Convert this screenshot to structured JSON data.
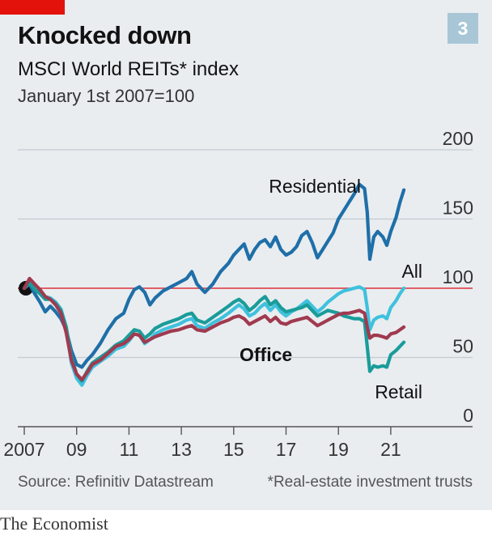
{
  "header": {
    "title": "Knocked down",
    "subtitle": "MSCI World REITs* index",
    "units": "January 1st 2007=100",
    "chart_number": "3"
  },
  "footer": {
    "source": "Source: Refinitiv Datastream",
    "footnote": "*Real-estate investment trusts",
    "brand": "The Economist"
  },
  "colors": {
    "residential": "#1f6fa8",
    "all": "#3fc1dd",
    "office": "#a03a4f",
    "retail": "#1a9c9a",
    "baseline": "#e0333c",
    "grid": "#c3ccd3",
    "panel": "#e9edf0"
  },
  "chart_data": {
    "type": "line",
    "title": "Knocked down",
    "subtitle": "MSCI World REITs* index",
    "ylabel": "January 1st 2007=100",
    "xlim": [
      2007,
      2021.9
    ],
    "ylim": [
      0,
      200
    ],
    "yticks": [
      0,
      50,
      100,
      150,
      200
    ],
    "xticks": [
      {
        "value": 2007,
        "label": "2007"
      },
      {
        "value": 2009,
        "label": "09"
      },
      {
        "value": 2011,
        "label": "11"
      },
      {
        "value": 2013,
        "label": "13"
      },
      {
        "value": 2015,
        "label": "15"
      },
      {
        "value": 2017,
        "label": "17"
      },
      {
        "value": 2019,
        "label": "19"
      },
      {
        "value": 2021,
        "label": "21"
      }
    ],
    "baseline": 100,
    "grid": true,
    "series": [
      {
        "name": "Residential",
        "key": "residential",
        "points": [
          [
            2007,
            100
          ],
          [
            2007.2,
            103
          ],
          [
            2007.4,
            96
          ],
          [
            2007.6,
            90
          ],
          [
            2007.8,
            83
          ],
          [
            2008,
            87
          ],
          [
            2008.2,
            83
          ],
          [
            2008.4,
            78
          ],
          [
            2008.6,
            70
          ],
          [
            2008.8,
            55
          ],
          [
            2009.0,
            45
          ],
          [
            2009.2,
            43
          ],
          [
            2009.4,
            48
          ],
          [
            2009.6,
            52
          ],
          [
            2009.9,
            60
          ],
          [
            2010.2,
            70
          ],
          [
            2010.5,
            78
          ],
          [
            2010.8,
            82
          ],
          [
            2011.0,
            92
          ],
          [
            2011.2,
            99
          ],
          [
            2011.4,
            101
          ],
          [
            2011.6,
            97
          ],
          [
            2011.8,
            88
          ],
          [
            2012.0,
            93
          ],
          [
            2012.3,
            98
          ],
          [
            2012.6,
            101
          ],
          [
            2012.9,
            104
          ],
          [
            2013.2,
            107
          ],
          [
            2013.4,
            112
          ],
          [
            2013.6,
            103
          ],
          [
            2013.9,
            97
          ],
          [
            2014.2,
            103
          ],
          [
            2014.5,
            112
          ],
          [
            2014.8,
            118
          ],
          [
            2015.0,
            124
          ],
          [
            2015.2,
            128
          ],
          [
            2015.4,
            132
          ],
          [
            2015.6,
            121
          ],
          [
            2015.8,
            128
          ],
          [
            2016.0,
            133
          ],
          [
            2016.2,
            135
          ],
          [
            2016.4,
            130
          ],
          [
            2016.6,
            137
          ],
          [
            2016.8,
            128
          ],
          [
            2017.0,
            124
          ],
          [
            2017.2,
            126
          ],
          [
            2017.4,
            130
          ],
          [
            2017.6,
            138
          ],
          [
            2017.8,
            141
          ],
          [
            2018.0,
            133
          ],
          [
            2018.2,
            122
          ],
          [
            2018.4,
            128
          ],
          [
            2018.6,
            134
          ],
          [
            2018.8,
            140
          ],
          [
            2019.0,
            150
          ],
          [
            2019.2,
            156
          ],
          [
            2019.4,
            162
          ],
          [
            2019.6,
            168
          ],
          [
            2019.8,
            175
          ],
          [
            2020.0,
            172
          ],
          [
            2020.1,
            155
          ],
          [
            2020.2,
            121
          ],
          [
            2020.35,
            137
          ],
          [
            2020.5,
            141
          ],
          [
            2020.7,
            137
          ],
          [
            2020.85,
            131
          ],
          [
            2021.0,
            141
          ],
          [
            2021.2,
            151
          ],
          [
            2021.35,
            162
          ],
          [
            2021.5,
            171
          ]
        ]
      },
      {
        "name": "All",
        "key": "all",
        "points": [
          [
            2007,
            100
          ],
          [
            2007.2,
            106
          ],
          [
            2007.4,
            101
          ],
          [
            2007.6,
            98
          ],
          [
            2007.8,
            94
          ],
          [
            2008,
            93
          ],
          [
            2008.2,
            90
          ],
          [
            2008.4,
            85
          ],
          [
            2008.6,
            72
          ],
          [
            2008.8,
            46
          ],
          [
            2009.0,
            35
          ],
          [
            2009.2,
            30
          ],
          [
            2009.4,
            37
          ],
          [
            2009.6,
            43
          ],
          [
            2009.9,
            47
          ],
          [
            2010.2,
            51
          ],
          [
            2010.5,
            56
          ],
          [
            2010.8,
            58
          ],
          [
            2011.0,
            62
          ],
          [
            2011.2,
            67
          ],
          [
            2011.4,
            66
          ],
          [
            2011.6,
            60
          ],
          [
            2011.8,
            63
          ],
          [
            2012.0,
            67
          ],
          [
            2012.3,
            70
          ],
          [
            2012.6,
            72
          ],
          [
            2012.9,
            74
          ],
          [
            2013.2,
            77
          ],
          [
            2013.4,
            78
          ],
          [
            2013.6,
            73
          ],
          [
            2013.9,
            71
          ],
          [
            2014.2,
            75
          ],
          [
            2014.5,
            78
          ],
          [
            2014.8,
            82
          ],
          [
            2015.0,
            85
          ],
          [
            2015.2,
            88
          ],
          [
            2015.4,
            85
          ],
          [
            2015.6,
            80
          ],
          [
            2015.8,
            82
          ],
          [
            2016.0,
            86
          ],
          [
            2016.2,
            89
          ],
          [
            2016.4,
            84
          ],
          [
            2016.6,
            88
          ],
          [
            2016.8,
            83
          ],
          [
            2017.0,
            80
          ],
          [
            2017.2,
            83
          ],
          [
            2017.4,
            85
          ],
          [
            2017.6,
            88
          ],
          [
            2017.8,
            91
          ],
          [
            2018.0,
            87
          ],
          [
            2018.2,
            83
          ],
          [
            2018.4,
            86
          ],
          [
            2018.6,
            90
          ],
          [
            2018.8,
            93
          ],
          [
            2019.0,
            96
          ],
          [
            2019.2,
            98
          ],
          [
            2019.4,
            99
          ],
          [
            2019.6,
            100
          ],
          [
            2019.8,
            101
          ],
          [
            2020.0,
            99
          ],
          [
            2020.1,
            86
          ],
          [
            2020.2,
            70
          ],
          [
            2020.35,
            77
          ],
          [
            2020.5,
            79
          ],
          [
            2020.7,
            80
          ],
          [
            2020.85,
            78
          ],
          [
            2021.0,
            86
          ],
          [
            2021.2,
            91
          ],
          [
            2021.35,
            96
          ],
          [
            2021.5,
            100
          ]
        ]
      },
      {
        "name": "Office",
        "key": "office",
        "points": [
          [
            2007,
            100
          ],
          [
            2007.2,
            107
          ],
          [
            2007.4,
            103
          ],
          [
            2007.6,
            99
          ],
          [
            2007.8,
            94
          ],
          [
            2008,
            92
          ],
          [
            2008.2,
            88
          ],
          [
            2008.4,
            82
          ],
          [
            2008.6,
            68
          ],
          [
            2008.8,
            48
          ],
          [
            2009.0,
            38
          ],
          [
            2009.2,
            34
          ],
          [
            2009.4,
            39
          ],
          [
            2009.6,
            45
          ],
          [
            2009.9,
            48
          ],
          [
            2010.2,
            53
          ],
          [
            2010.5,
            58
          ],
          [
            2010.8,
            60
          ],
          [
            2011.0,
            63
          ],
          [
            2011.2,
            67
          ],
          [
            2011.4,
            66
          ],
          [
            2011.6,
            61
          ],
          [
            2011.8,
            63
          ],
          [
            2012.0,
            65
          ],
          [
            2012.3,
            67
          ],
          [
            2012.6,
            69
          ],
          [
            2012.9,
            70
          ],
          [
            2013.2,
            72
          ],
          [
            2013.4,
            73
          ],
          [
            2013.6,
            70
          ],
          [
            2013.9,
            69
          ],
          [
            2014.2,
            72
          ],
          [
            2014.5,
            75
          ],
          [
            2014.8,
            77
          ],
          [
            2015.0,
            79
          ],
          [
            2015.2,
            80
          ],
          [
            2015.4,
            78
          ],
          [
            2015.6,
            74
          ],
          [
            2015.8,
            76
          ],
          [
            2016.0,
            78
          ],
          [
            2016.2,
            80
          ],
          [
            2016.4,
            76
          ],
          [
            2016.6,
            79
          ],
          [
            2016.8,
            75
          ],
          [
            2017.0,
            74
          ],
          [
            2017.2,
            76
          ],
          [
            2017.4,
            77
          ],
          [
            2017.6,
            78
          ],
          [
            2017.8,
            79
          ],
          [
            2018.0,
            76
          ],
          [
            2018.2,
            73
          ],
          [
            2018.4,
            75
          ],
          [
            2018.6,
            77
          ],
          [
            2018.8,
            79
          ],
          [
            2019.0,
            81
          ],
          [
            2019.2,
            82
          ],
          [
            2019.4,
            82
          ],
          [
            2019.6,
            83
          ],
          [
            2019.8,
            84
          ],
          [
            2020.0,
            82
          ],
          [
            2020.1,
            72
          ],
          [
            2020.2,
            64
          ],
          [
            2020.35,
            66
          ],
          [
            2020.5,
            66
          ],
          [
            2020.7,
            65
          ],
          [
            2020.85,
            64
          ],
          [
            2021.0,
            67
          ],
          [
            2021.2,
            68
          ],
          [
            2021.35,
            70
          ],
          [
            2021.5,
            72
          ]
        ]
      },
      {
        "name": "Retail",
        "key": "retail",
        "points": [
          [
            2007,
            100
          ],
          [
            2007.2,
            104
          ],
          [
            2007.4,
            99
          ],
          [
            2007.6,
            96
          ],
          [
            2007.8,
            92
          ],
          [
            2008,
            92
          ],
          [
            2008.2,
            89
          ],
          [
            2008.4,
            84
          ],
          [
            2008.6,
            72
          ],
          [
            2008.8,
            50
          ],
          [
            2009.0,
            38
          ],
          [
            2009.2,
            33
          ],
          [
            2009.4,
            40
          ],
          [
            2009.6,
            46
          ],
          [
            2009.9,
            50
          ],
          [
            2010.2,
            54
          ],
          [
            2010.5,
            59
          ],
          [
            2010.8,
            62
          ],
          [
            2011.0,
            66
          ],
          [
            2011.2,
            70
          ],
          [
            2011.4,
            69
          ],
          [
            2011.6,
            64
          ],
          [
            2011.8,
            67
          ],
          [
            2012.0,
            71
          ],
          [
            2012.3,
            74
          ],
          [
            2012.6,
            76
          ],
          [
            2012.9,
            78
          ],
          [
            2013.2,
            81
          ],
          [
            2013.4,
            82
          ],
          [
            2013.6,
            77
          ],
          [
            2013.9,
            75
          ],
          [
            2014.2,
            79
          ],
          [
            2014.5,
            83
          ],
          [
            2014.8,
            87
          ],
          [
            2015.0,
            90
          ],
          [
            2015.2,
            92
          ],
          [
            2015.4,
            89
          ],
          [
            2015.6,
            84
          ],
          [
            2015.8,
            87
          ],
          [
            2016.0,
            91
          ],
          [
            2016.2,
            94
          ],
          [
            2016.4,
            88
          ],
          [
            2016.6,
            91
          ],
          [
            2016.8,
            86
          ],
          [
            2017.0,
            83
          ],
          [
            2017.2,
            84
          ],
          [
            2017.4,
            85
          ],
          [
            2017.6,
            86
          ],
          [
            2017.8,
            88
          ],
          [
            2018.0,
            84
          ],
          [
            2018.2,
            80
          ],
          [
            2018.4,
            82
          ],
          [
            2018.6,
            84
          ],
          [
            2018.8,
            83
          ],
          [
            2019.0,
            82
          ],
          [
            2019.2,
            80
          ],
          [
            2019.4,
            79
          ],
          [
            2019.6,
            78
          ],
          [
            2019.8,
            78
          ],
          [
            2020.0,
            76
          ],
          [
            2020.1,
            58
          ],
          [
            2020.2,
            40
          ],
          [
            2020.35,
            44
          ],
          [
            2020.5,
            43
          ],
          [
            2020.7,
            44
          ],
          [
            2020.85,
            43
          ],
          [
            2021.0,
            52
          ],
          [
            2021.2,
            55
          ],
          [
            2021.35,
            58
          ],
          [
            2021.5,
            61
          ]
        ]
      }
    ],
    "labels": [
      {
        "series": "residential",
        "text": "Residential"
      },
      {
        "series": "all",
        "text": "All"
      },
      {
        "series": "office",
        "text": "Office"
      },
      {
        "series": "retail",
        "text": "Retail"
      }
    ]
  }
}
